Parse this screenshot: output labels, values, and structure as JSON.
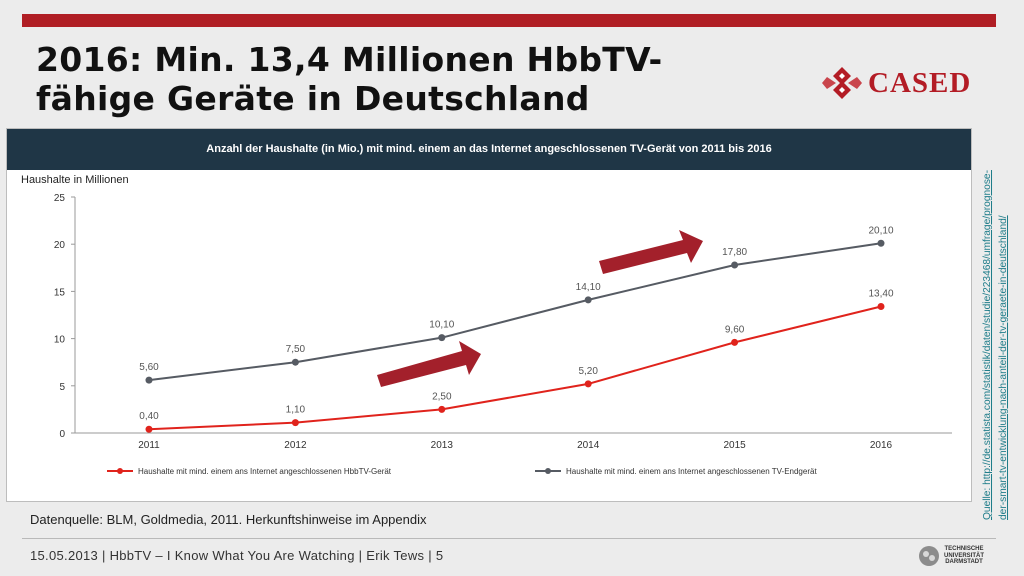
{
  "slide": {
    "title_line1": "2016: Min. 13,4 Millionen HbbTV-",
    "title_line2": "fähige Geräte in Deutschland",
    "logo_text": "CASED",
    "source_note": "Datenquelle:  BLM, Goldmedia,  2011. Herkunftshinweise  im Appendix",
    "vertical_source_line1": "Quelle: http://de.statista.com/statistik/daten/studie/223468/umfrage/prognose-",
    "vertical_source_line2": "der-smart-tv-entwicklung-nach-anteil-der-tv-geraete-in-deutschland/",
    "footer": "15.05.2013  | HbbTV – I Know What You Are Watching  | Erik Tews | 5",
    "university_logo_text": [
      "TECHNISCHE",
      "UNIVERSITÄT",
      "DARMSTADT"
    ],
    "colors": {
      "accent_bar": "#b01e24",
      "header": "#1f3646",
      "arrow": "#a3202b"
    }
  },
  "chart_data": {
    "type": "line",
    "title": "Anzahl der Haushalte (in Mio.) mit mind. einem an das Internet angeschlossenen TV-Gerät von 2011 bis 2016",
    "ylabel": "Haushalte in Millionen",
    "xlabel": "",
    "categories": [
      "2011",
      "2012",
      "2013",
      "2014",
      "2015",
      "2016"
    ],
    "ylim": [
      0,
      25
    ],
    "yticks": [
      0,
      5,
      10,
      15,
      20,
      25
    ],
    "grid": false,
    "legend_position": "bottom",
    "series": [
      {
        "name": "Haushalte mit mind. einem ans Internet angeschlossenen HbbTV-Gerät",
        "values": [
          0.4,
          1.1,
          2.5,
          5.2,
          9.6,
          13.4
        ],
        "labels": [
          "0,40",
          "1,10",
          "2,50",
          "5,20",
          "9,60",
          "13,40"
        ],
        "color": "#e0231c"
      },
      {
        "name": "Haushalte mit mind. einem ans Internet angeschlossenen TV-Endgerät",
        "values": [
          5.6,
          7.5,
          10.1,
          14.1,
          17.8,
          20.1
        ],
        "labels": [
          "5,60",
          "7,50",
          "10,10",
          "14,10",
          "17,80",
          "20,10"
        ],
        "color": "#565b63"
      }
    ]
  }
}
